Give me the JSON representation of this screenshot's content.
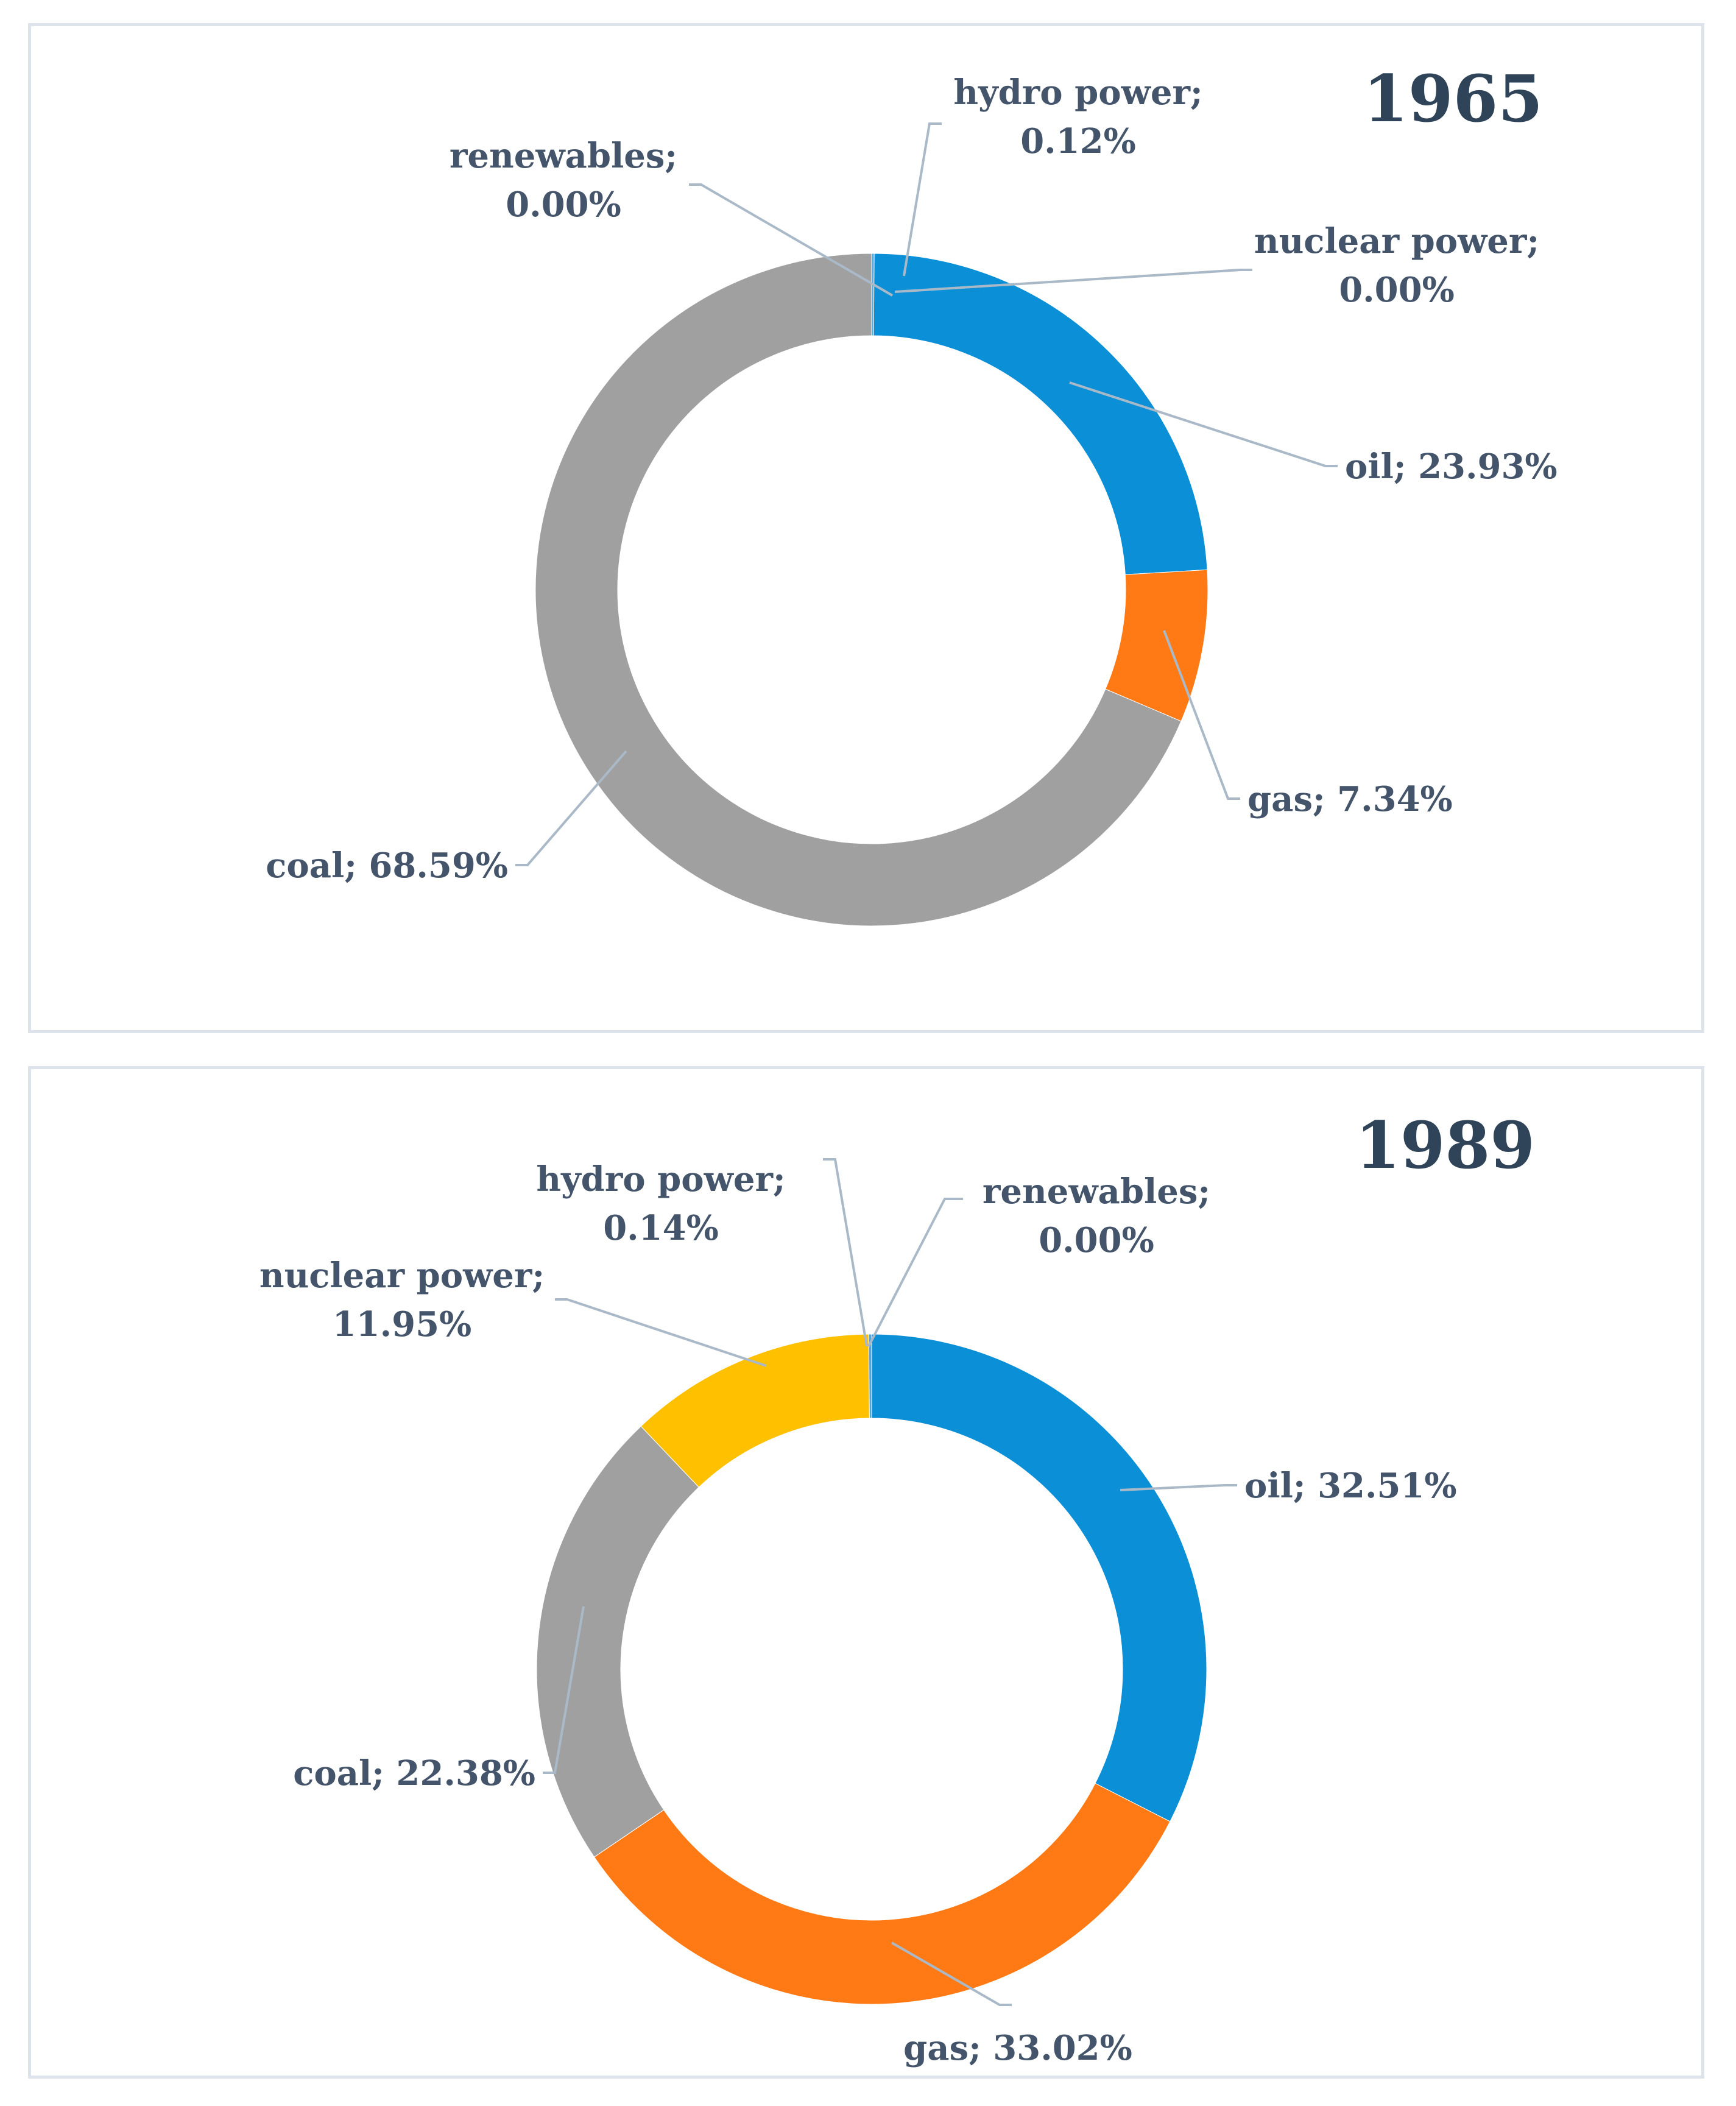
{
  "chart_data": [
    {
      "type": "donut",
      "title": "1965",
      "unit": "%",
      "slices": [
        {
          "key": "hydro",
          "name": "hydro power",
          "value": 0.12,
          "label": "hydro power;",
          "value_text": "0.12%",
          "color": "#4ba8e0"
        },
        {
          "key": "nuclear",
          "name": "nuclear power",
          "value": 0.0,
          "label": "nuclear power;",
          "value_text": "0.00%",
          "color": "#ffc000"
        },
        {
          "key": "oil",
          "name": "oil",
          "value": 23.93,
          "label": "oil; 23.93%",
          "color": "#0b8fd6"
        },
        {
          "key": "gas",
          "name": "gas",
          "value": 7.34,
          "label": "gas; 7.34%",
          "color": "#ff7a14"
        },
        {
          "key": "coal",
          "name": "coal",
          "value": 68.59,
          "label": "coal; 68.59%",
          "color": "#a0a0a0"
        },
        {
          "key": "renewables",
          "name": "renewables",
          "value": 0.0,
          "label": "renewables;",
          "value_text": "0.00%",
          "color": "#5b9bd5"
        }
      ]
    },
    {
      "type": "donut",
      "title": "1989",
      "unit": "%",
      "slices": [
        {
          "key": "renewables",
          "name": "renewables",
          "value": 0.0,
          "label": "renewables;",
          "value_text": "0.00%",
          "color": "#5b9bd5"
        },
        {
          "key": "oil",
          "name": "oil",
          "value": 32.51,
          "label": "oil; 32.51%",
          "color": "#0b8fd6"
        },
        {
          "key": "gas",
          "name": "gas",
          "value": 33.02,
          "label": "gas; 33.02%",
          "color": "#ff7a14"
        },
        {
          "key": "coal",
          "name": "coal",
          "value": 22.38,
          "label": "coal; 22.38%",
          "color": "#a0a0a0"
        },
        {
          "key": "nuclear",
          "name": "nuclear power",
          "value": 11.95,
          "label": "nuclear power;",
          "value_text": "11.95%",
          "color": "#ffc000"
        },
        {
          "key": "hydro",
          "name": "hydro power",
          "value": 0.14,
          "label": "hydro power;",
          "value_text": "0.14%",
          "color": "#4ba8e0"
        }
      ]
    }
  ]
}
